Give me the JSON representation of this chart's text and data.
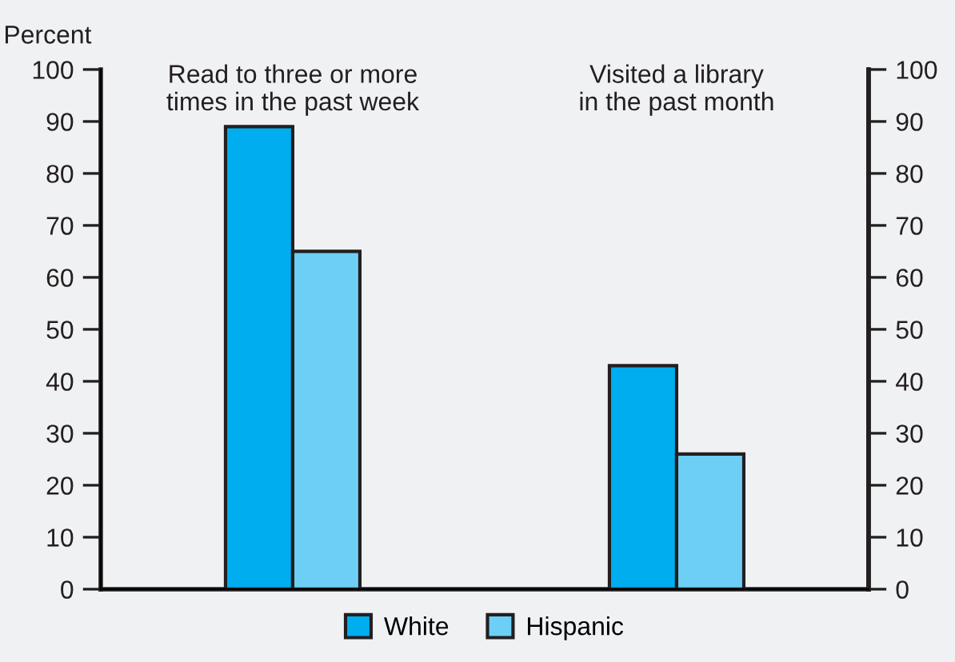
{
  "chart_data": {
    "type": "bar",
    "ylabel": "Percent",
    "categories": [
      "Read to three or more\ntimes in the past week",
      "Visited a library\nin the past month"
    ],
    "series": [
      {
        "name": "White",
        "color": "#00aeef",
        "values": [
          89,
          43
        ]
      },
      {
        "name": "Hispanic",
        "color": "#6dcff6",
        "values": [
          65,
          26
        ]
      }
    ],
    "ylim": [
      0,
      100
    ],
    "yticks": [
      0,
      10,
      20,
      30,
      40,
      50,
      60,
      70,
      80,
      90,
      100
    ],
    "y2lim": [
      0,
      100
    ],
    "y2ticks": [
      0,
      10,
      20,
      30,
      40,
      50,
      60,
      70,
      80,
      90,
      100
    ],
    "grid": false,
    "legend": "bottom"
  }
}
